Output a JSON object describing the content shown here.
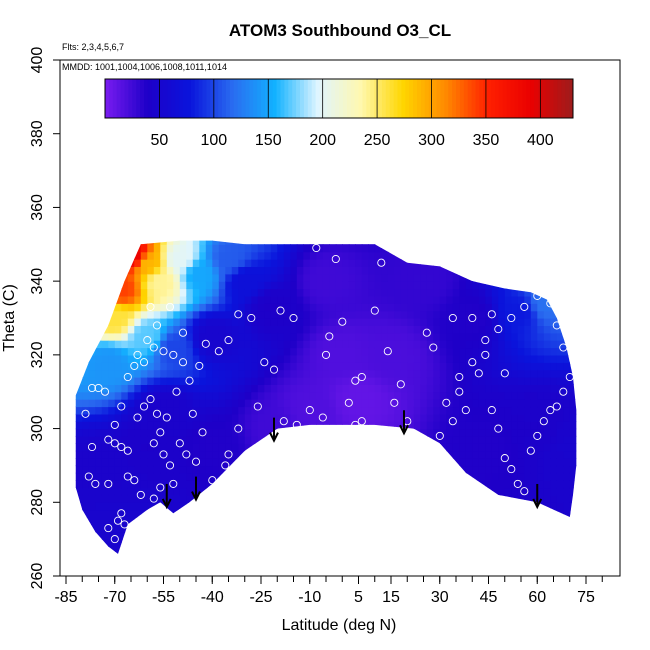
{
  "chart_data": {
    "type": "heatmap",
    "title": "ATOM3 Southbound O3_CL",
    "flights_note": "Flts: 2,3,4,5,6,7",
    "dates_note": "MMDD: 1001,1004,1006,1008,1011,1014",
    "xlabel": "Latitude (deg N)",
    "ylabel": "Theta (C)",
    "xlim": [
      -85,
      80
    ],
    "ylim": [
      260,
      400
    ],
    "x_tick_labels": [
      "-85",
      "-70",
      "-55",
      "-40",
      "-25",
      "-10",
      "5",
      "15",
      "30",
      "45",
      "60",
      "75"
    ],
    "x_tick_values": [
      -85,
      -70,
      -55,
      -40,
      -25,
      -10,
      5,
      15,
      30,
      45,
      60,
      75
    ],
    "x_minor_tick_values": [
      -85,
      -80,
      -75,
      -70,
      -65,
      -60,
      -55,
      -50,
      -45,
      -40,
      -35,
      -30,
      -25,
      -20,
      -15,
      -10,
      -5,
      0,
      5,
      10,
      15,
      20,
      25,
      30,
      35,
      40,
      45,
      50,
      55,
      60,
      65,
      70,
      75,
      80
    ],
    "y_tick_labels": [
      "260",
      "280",
      "300",
      "320",
      "340",
      "360",
      "380",
      "400"
    ],
    "y_tick_values": [
      260,
      280,
      300,
      320,
      340,
      360,
      380,
      400
    ],
    "colorbar": {
      "range": [
        0,
        430
      ],
      "tick_labels": [
        "50",
        "100",
        "150",
        "200",
        "250",
        "300",
        "350",
        "400"
      ],
      "tick_values": [
        50,
        100,
        150,
        200,
        250,
        300,
        350,
        400
      ],
      "colors": [
        "#7a1cf0",
        "#1e00c8",
        "#0a14dc",
        "#2a6cf0",
        "#12b2ff",
        "#dff5ff",
        "#fff8b0",
        "#ffd600",
        "#ff8a00",
        "#ff2000",
        "#ea0000",
        "#9e1c1c"
      ]
    },
    "upper_boundary": [
      [
        -82,
        309
      ],
      [
        -78,
        318
      ],
      [
        -72,
        328
      ],
      [
        -67,
        340
      ],
      [
        -62,
        350
      ],
      [
        -50,
        351
      ],
      [
        -40,
        351
      ],
      [
        -30,
        350
      ],
      [
        -20,
        350
      ],
      [
        -10,
        350
      ],
      [
        0,
        350
      ],
      [
        10,
        350
      ],
      [
        20,
        345
      ],
      [
        30,
        344
      ],
      [
        40,
        340
      ],
      [
        50,
        338
      ],
      [
        58,
        337
      ],
      [
        63,
        335
      ],
      [
        66,
        330
      ],
      [
        69,
        322
      ],
      [
        71,
        314
      ],
      [
        72,
        305
      ],
      [
        72,
        298
      ],
      [
        72,
        290
      ]
    ],
    "lower_boundary": [
      [
        72,
        290
      ],
      [
        71,
        282
      ],
      [
        70,
        276
      ],
      [
        60,
        280
      ],
      [
        48,
        282
      ],
      [
        38,
        288
      ],
      [
        30,
        296
      ],
      [
        22,
        300
      ],
      [
        10,
        301
      ],
      [
        0,
        301
      ],
      [
        -10,
        301
      ],
      [
        -20,
        300
      ],
      [
        -30,
        294
      ],
      [
        -40,
        285
      ],
      [
        -47,
        280
      ],
      [
        -52,
        277
      ],
      [
        -56,
        280
      ],
      [
        -60,
        278
      ],
      [
        -66,
        274
      ],
      [
        -69,
        266
      ],
      [
        -72,
        268
      ],
      [
        -76,
        272
      ],
      [
        -80,
        278
      ],
      [
        -82,
        284
      ]
    ],
    "field_anchors": [
      {
        "lat": -64,
        "theta": 347,
        "o3": 390
      },
      {
        "lat": -68,
        "theta": 338,
        "o3": 340
      },
      {
        "lat": -60,
        "theta": 345,
        "o3": 290
      },
      {
        "lat": -70,
        "theta": 330,
        "o3": 260
      },
      {
        "lat": -56,
        "theta": 340,
        "o3": 240
      },
      {
        "lat": -50,
        "theta": 346,
        "o3": 200
      },
      {
        "lat": -60,
        "theta": 325,
        "o3": 170
      },
      {
        "lat": -44,
        "theta": 342,
        "o3": 150
      },
      {
        "lat": -72,
        "theta": 318,
        "o3": 140
      },
      {
        "lat": -35,
        "theta": 346,
        "o3": 110
      },
      {
        "lat": -52,
        "theta": 322,
        "o3": 100
      },
      {
        "lat": -30,
        "theta": 340,
        "o3": 70
      },
      {
        "lat": -40,
        "theta": 325,
        "o3": 50
      },
      {
        "lat": -22,
        "theta": 333,
        "o3": 40
      },
      {
        "lat": -5,
        "theta": 340,
        "o3": 25
      },
      {
        "lat": 0,
        "theta": 320,
        "o3": 18
      },
      {
        "lat": 5,
        "theta": 308,
        "o3": 10
      },
      {
        "lat": -10,
        "theta": 305,
        "o3": 18
      },
      {
        "lat": 15,
        "theta": 320,
        "o3": 20
      },
      {
        "lat": 25,
        "theta": 340,
        "o3": 30
      },
      {
        "lat": 40,
        "theta": 330,
        "o3": 38
      },
      {
        "lat": 55,
        "theta": 332,
        "o3": 80
      },
      {
        "lat": 62,
        "theta": 334,
        "o3": 120
      },
      {
        "lat": 60,
        "theta": 300,
        "o3": 42
      },
      {
        "lat": 45,
        "theta": 295,
        "o3": 38
      },
      {
        "lat": -20,
        "theta": 300,
        "o3": 25
      },
      {
        "lat": -40,
        "theta": 295,
        "o3": 38
      },
      {
        "lat": -60,
        "theta": 295,
        "o3": 42
      },
      {
        "lat": -75,
        "theta": 290,
        "o3": 45
      },
      {
        "lat": -70,
        "theta": 275,
        "o3": 48
      },
      {
        "lat": -55,
        "theta": 305,
        "o3": 45
      },
      {
        "lat": 70,
        "theta": 295,
        "o3": 48
      }
    ],
    "arrows": [
      {
        "lat": -54,
        "theta": 279
      },
      {
        "lat": -45,
        "theta": 281
      },
      {
        "lat": -21,
        "theta": 297
      },
      {
        "lat": 19,
        "theta": 299
      },
      {
        "lat": 60,
        "theta": 279
      }
    ],
    "observations": [
      [
        -79,
        304
      ],
      [
        -77,
        311
      ],
      [
        -75,
        311
      ],
      [
        -73,
        310
      ],
      [
        -77,
        295
      ],
      [
        -72,
        297
      ],
      [
        -70,
        296
      ],
      [
        -68,
        295
      ],
      [
        -66,
        294
      ],
      [
        -70,
        301
      ],
      [
        -68,
        306
      ],
      [
        -63,
        303
      ],
      [
        -61,
        306
      ],
      [
        -59,
        308
      ],
      [
        -57,
        304
      ],
      [
        -56,
        299
      ],
      [
        -54,
        303
      ],
      [
        -58,
        296
      ],
      [
        -55,
        293
      ],
      [
        -53,
        290
      ],
      [
        -52,
        285
      ],
      [
        -56,
        284
      ],
      [
        -58,
        281
      ],
      [
        -62,
        282
      ],
      [
        -64,
        286
      ],
      [
        -66,
        287
      ],
      [
        -68,
        277
      ],
      [
        -67,
        274
      ],
      [
        -69,
        275
      ],
      [
        -70,
        270
      ],
      [
        -72,
        273
      ],
      [
        -74,
        268
      ],
      [
        -78,
        287
      ],
      [
        -76,
        285
      ],
      [
        -72,
        285
      ],
      [
        -50,
        296
      ],
      [
        -48,
        293
      ],
      [
        -45,
        291
      ],
      [
        -43,
        299
      ],
      [
        -46,
        304
      ],
      [
        -51,
        310
      ],
      [
        -47,
        313
      ],
      [
        -44,
        317
      ],
      [
        -49,
        318
      ],
      [
        -52,
        320
      ],
      [
        -55,
        321
      ],
      [
        -58,
        322
      ],
      [
        -61,
        318
      ],
      [
        -64,
        317
      ],
      [
        -66,
        314
      ],
      [
        -63,
        320
      ],
      [
        -60,
        324
      ],
      [
        -57,
        328
      ],
      [
        -59,
        333
      ],
      [
        -53,
        333
      ],
      [
        -49,
        326
      ],
      [
        -42,
        323
      ],
      [
        -38,
        321
      ],
      [
        -35,
        324
      ],
      [
        -32,
        331
      ],
      [
        -28,
        330
      ],
      [
        -26,
        306
      ],
      [
        -24,
        318
      ],
      [
        -21,
        316
      ],
      [
        -19,
        332
      ],
      [
        -15,
        330
      ],
      [
        -8,
        349
      ],
      [
        -5,
        320
      ],
      [
        -2,
        346
      ],
      [
        -28,
        288
      ],
      [
        -22,
        297
      ],
      [
        -18,
        302
      ],
      [
        -14,
        301
      ],
      [
        -10,
        305
      ],
      [
        -6,
        303
      ],
      [
        -4,
        325
      ],
      [
        0,
        329
      ],
      [
        2,
        307
      ],
      [
        4,
        313
      ],
      [
        6,
        314
      ],
      [
        4,
        301
      ],
      [
        6,
        302
      ],
      [
        8,
        297
      ],
      [
        10,
        332
      ],
      [
        12,
        345
      ],
      [
        14,
        321
      ],
      [
        16,
        307
      ],
      [
        18,
        312
      ],
      [
        20,
        302
      ],
      [
        22,
        288
      ],
      [
        24,
        346
      ],
      [
        26,
        326
      ],
      [
        28,
        322
      ],
      [
        30,
        298
      ],
      [
        32,
        307
      ],
      [
        34,
        302
      ],
      [
        36,
        310
      ],
      [
        38,
        305
      ],
      [
        40,
        330
      ],
      [
        42,
        315
      ],
      [
        44,
        320
      ],
      [
        46,
        305
      ],
      [
        48,
        300
      ],
      [
        50,
        292
      ],
      [
        52,
        289
      ],
      [
        54,
        285
      ],
      [
        56,
        283
      ],
      [
        58,
        294
      ],
      [
        60,
        298
      ],
      [
        62,
        302
      ],
      [
        64,
        305
      ],
      [
        66,
        306
      ],
      [
        68,
        310
      ],
      [
        70,
        314
      ],
      [
        68,
        322
      ],
      [
        66,
        328
      ],
      [
        64,
        334
      ],
      [
        60,
        336
      ],
      [
        56,
        333
      ],
      [
        52,
        330
      ],
      [
        48,
        327
      ],
      [
        44,
        324
      ],
      [
        40,
        318
      ],
      [
        36,
        314
      ],
      [
        34,
        330
      ],
      [
        46,
        331
      ],
      [
        50,
        315
      ],
      [
        -36,
        290
      ],
      [
        -40,
        286
      ],
      [
        -35,
        293
      ],
      [
        -32,
        300
      ]
    ]
  }
}
